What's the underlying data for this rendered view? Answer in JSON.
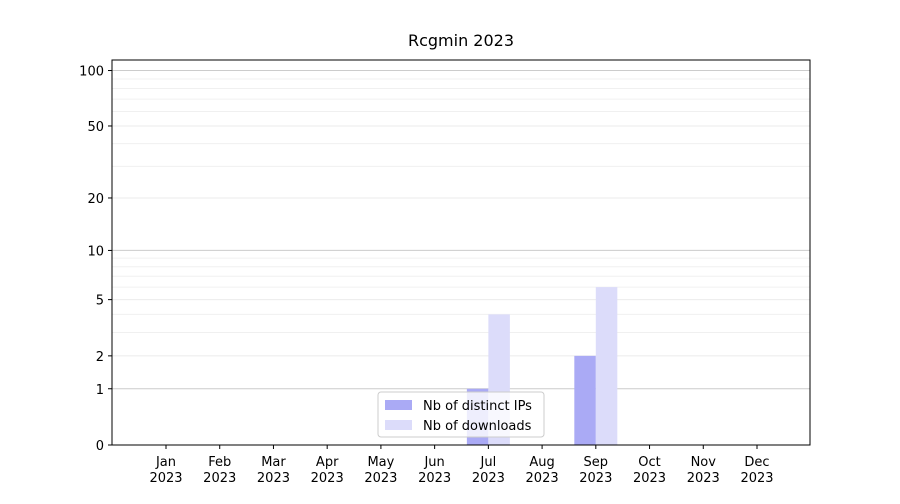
{
  "chart_data": {
    "type": "bar",
    "title": "Rcgmin 2023",
    "categories": [
      "Jan\n2023",
      "Feb\n2023",
      "Mar\n2023",
      "Apr\n2023",
      "May\n2023",
      "Jun\n2023",
      "Jul\n2023",
      "Aug\n2023",
      "Sep\n2023",
      "Oct\n2023",
      "Nov\n2023",
      "Dec\n2023"
    ],
    "series": [
      {
        "name": "Nb of distinct IPs",
        "color": "#aaaaf5",
        "values": [
          0,
          0,
          0,
          0,
          0,
          0,
          1,
          0,
          2,
          0,
          0,
          0
        ]
      },
      {
        "name": "Nb of downloads",
        "color": "#dcdcfa",
        "values": [
          0,
          0,
          0,
          0,
          0,
          0,
          4,
          0,
          6,
          0,
          0,
          0
        ]
      }
    ],
    "yscale": "log1p",
    "ylim": [
      0,
      114
    ],
    "yticks": [
      0,
      1,
      2,
      5,
      10,
      20,
      50,
      100
    ],
    "yminor": [
      3,
      4,
      6,
      7,
      8,
      9,
      30,
      40,
      60,
      70,
      80,
      90
    ],
    "grid": true,
    "legend": "lower center"
  }
}
